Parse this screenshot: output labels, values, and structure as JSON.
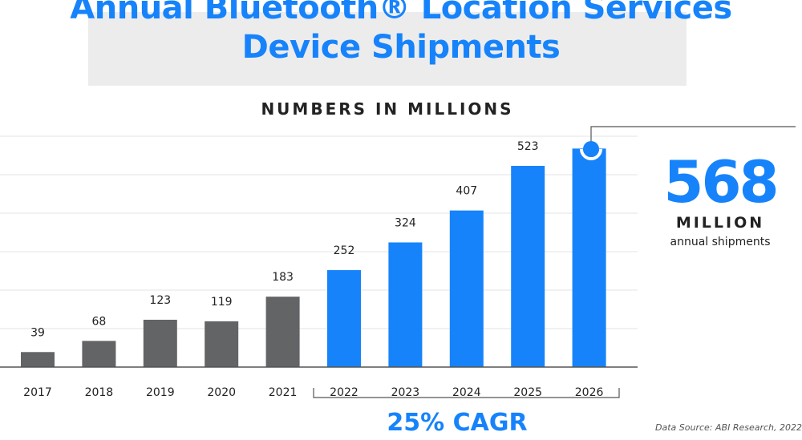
{
  "title": "Annual Bluetooth® Location Services Device Shipments",
  "subtitle": "NUMBERS IN MILLIONS",
  "callout": {
    "value": "568",
    "unit": "MILLION",
    "description": "annual shipments"
  },
  "cagr_label": "25% CAGR",
  "source": "Data Source: ABI Research, 2022",
  "colors": {
    "historical": "#636466",
    "forecast": "#1683fb",
    "grid": "#e3e3e3",
    "axis": "#555555"
  },
  "chart_data": {
    "type": "bar",
    "title": "Annual Bluetooth® Location Services Device Shipments",
    "subtitle": "NUMBERS IN MILLIONS",
    "categories": [
      "2017",
      "2018",
      "2019",
      "2020",
      "2021",
      "2022",
      "2023",
      "2024",
      "2025",
      "2026"
    ],
    "values": [
      39,
      68,
      123,
      119,
      183,
      252,
      324,
      407,
      523,
      568
    ],
    "data_labels": [
      "39",
      "68",
      "123",
      "119",
      "183",
      "252",
      "324",
      "407",
      "523",
      ""
    ],
    "series_type": [
      "historical",
      "historical",
      "historical",
      "historical",
      "historical",
      "forecast",
      "forecast",
      "forecast",
      "forecast",
      "forecast"
    ],
    "xlabel": "",
    "ylabel": "",
    "ylim": [
      0,
      600
    ],
    "grid": true,
    "legend": "none"
  }
}
